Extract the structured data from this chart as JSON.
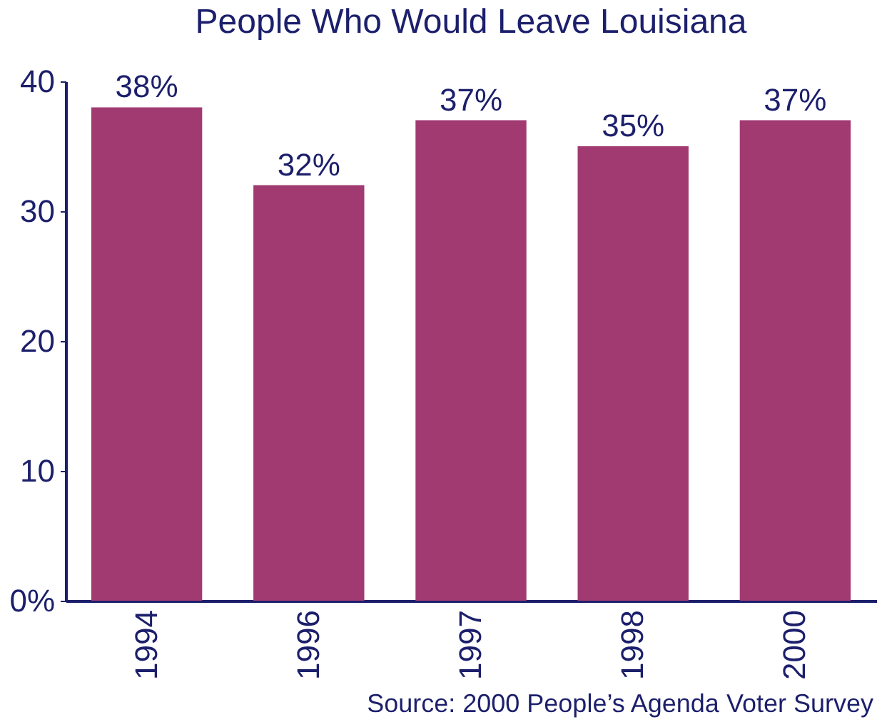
{
  "chart_data": {
    "type": "bar",
    "title": "People Who Would Leave Louisiana",
    "categories": [
      "1994",
      "1996",
      "1997",
      "1998",
      "2000"
    ],
    "values": [
      38,
      32,
      37,
      35,
      37
    ],
    "color": "#a23a72",
    "value_labels": [
      "38%",
      "32%",
      "37%",
      "35%",
      "37%"
    ],
    "ylim": [
      0,
      40
    ],
    "yticks": [
      {
        "value": 0,
        "label": "0%"
      },
      10,
      20,
      30,
      40
    ],
    "grid": false,
    "annotations": [
      "Source:  2000 People’s Agenda Voter Survey"
    ]
  }
}
